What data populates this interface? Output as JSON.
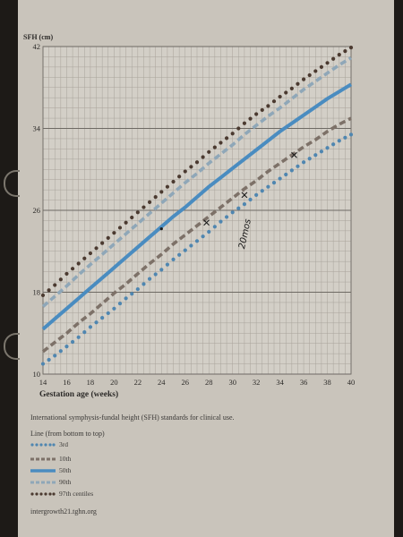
{
  "chart_data": {
    "type": "line",
    "title": "",
    "ylabel": "SFH (cm)",
    "xlabel": "Gestation age (weeks)",
    "xlim": [
      14,
      40
    ],
    "ylim": [
      10,
      42
    ],
    "xticks": [
      14,
      16,
      18,
      20,
      22,
      24,
      26,
      28,
      30,
      32,
      34,
      36,
      38,
      40
    ],
    "yticks": [
      10,
      18,
      26,
      34,
      42
    ],
    "grid": true,
    "x": [
      14,
      15,
      16,
      17,
      18,
      19,
      20,
      21,
      22,
      23,
      24,
      25,
      26,
      27,
      28,
      29,
      30,
      31,
      32,
      33,
      34,
      35,
      36,
      37,
      38,
      39,
      40
    ],
    "series": [
      {
        "name": "3rd",
        "style": "dotted",
        "color": "#4f86b0",
        "values": [
          11.0,
          11.8,
          12.7,
          13.6,
          14.6,
          15.5,
          16.4,
          17.4,
          18.3,
          19.3,
          20.2,
          21.2,
          22.1,
          23.0,
          23.9,
          24.9,
          25.8,
          26.6,
          27.5,
          28.3,
          29.1,
          29.9,
          30.7,
          31.4,
          32.1,
          32.8,
          33.4
        ]
      },
      {
        "name": "10th",
        "style": "dashed",
        "color": "#7d7168",
        "values": [
          12.2,
          13.1,
          14.0,
          15.0,
          15.9,
          16.9,
          17.9,
          18.8,
          19.8,
          20.8,
          21.7,
          22.7,
          23.6,
          24.5,
          25.4,
          26.3,
          27.2,
          28.1,
          28.9,
          29.8,
          30.6,
          31.4,
          32.2,
          32.9,
          33.7,
          34.4,
          35.0
        ]
      },
      {
        "name": "50th",
        "style": "solid",
        "color": "#4a8cc0",
        "values": [
          14.4,
          15.4,
          16.4,
          17.4,
          18.4,
          19.4,
          20.4,
          21.4,
          22.4,
          23.4,
          24.4,
          25.4,
          26.3,
          27.3,
          28.3,
          29.2,
          30.1,
          31.0,
          31.9,
          32.8,
          33.7,
          34.5,
          35.3,
          36.1,
          36.9,
          37.6,
          38.3
        ]
      },
      {
        "name": "90th",
        "style": "dashed",
        "color": "#8fa7b8",
        "values": [
          16.6,
          17.6,
          18.6,
          19.7,
          20.7,
          21.7,
          22.7,
          23.7,
          24.7,
          25.7,
          26.7,
          27.7,
          28.7,
          29.6,
          30.6,
          31.5,
          32.4,
          33.4,
          34.3,
          35.2,
          36.0,
          36.9,
          37.8,
          38.6,
          39.4,
          40.2,
          40.9
        ]
      },
      {
        "name": "97th",
        "style": "dotted",
        "color": "#4b3a30",
        "values": [
          17.7,
          18.7,
          19.8,
          20.8,
          21.8,
          22.8,
          23.8,
          24.8,
          25.8,
          26.8,
          27.8,
          28.8,
          29.8,
          30.7,
          31.7,
          32.6,
          33.5,
          34.5,
          35.4,
          36.2,
          37.1,
          37.9,
          38.8,
          39.6,
          40.4,
          41.2,
          41.9
        ]
      }
    ]
  },
  "caption": "International symphysis-fundal height (SFH) standards for clinical use.",
  "legend": {
    "title": "Line (from bottom to top)",
    "items": [
      "3rd",
      "10th",
      "50th",
      "90th",
      "97th centiles"
    ]
  },
  "footer": "intergrowth21.tghn.org",
  "handwriting": "20mos"
}
